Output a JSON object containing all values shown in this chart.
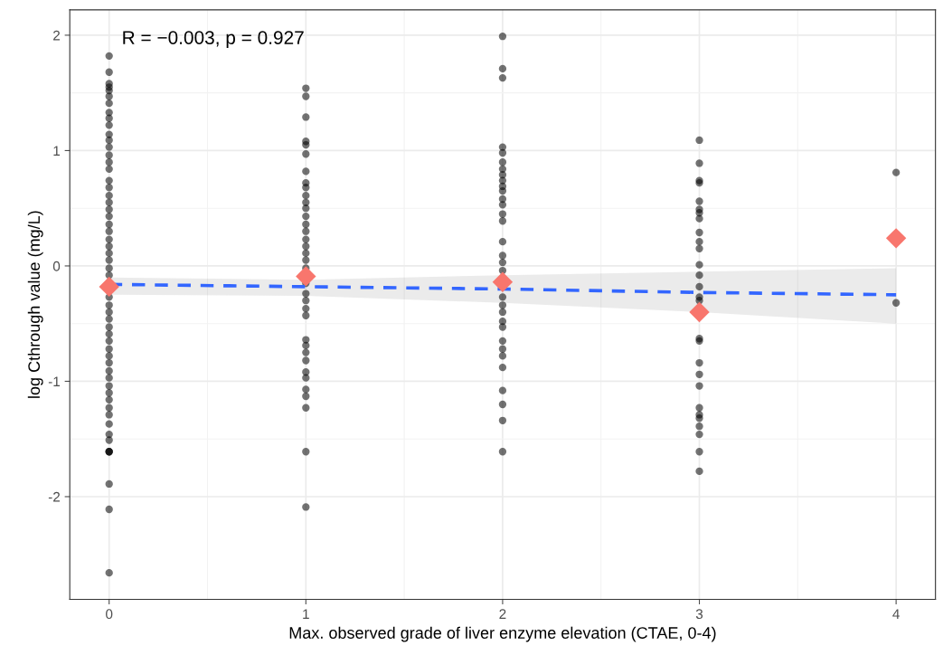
{
  "chart_data": {
    "type": "scatter",
    "xlabel": "Max. observed grade of liver enzyme elevation (CTAE, 0-4)",
    "ylabel": "log Cthrough value (mg/L)",
    "annotations": [
      "R = −0.003, p = 0.927"
    ],
    "xlim": [
      -0.2,
      4.2
    ],
    "xticks": [
      0,
      1,
      2,
      3,
      4
    ],
    "ylim": [
      -2.89,
      2.22
    ],
    "yticks": [
      -2,
      -1,
      0,
      1,
      2
    ],
    "grid": true,
    "series": [
      {
        "marker": "circle",
        "color": "#000000",
        "x": [
          0,
          0,
          0,
          0,
          0,
          0,
          0,
          0,
          0,
          0,
          0,
          0,
          0,
          0,
          0,
          0,
          0,
          0,
          0,
          0,
          0,
          0,
          0,
          0,
          0,
          0,
          0,
          0,
          0,
          0,
          0,
          0,
          0,
          0,
          0,
          0,
          0,
          0,
          0,
          0,
          0,
          0,
          0,
          0,
          0,
          0,
          0,
          0,
          0,
          0,
          0,
          0,
          0,
          0,
          0,
          0,
          1,
          1,
          1,
          1,
          1,
          1,
          1,
          1,
          1,
          1,
          1,
          1,
          1,
          1,
          1,
          1,
          1,
          1,
          1,
          1,
          1,
          1,
          1,
          1,
          1,
          1,
          1,
          1,
          1,
          1,
          1,
          1,
          1,
          1,
          1,
          1,
          2,
          2,
          2,
          2,
          2,
          2,
          2,
          2,
          2,
          2,
          2,
          2,
          2,
          2,
          2,
          2,
          2,
          2,
          2,
          2,
          2,
          2,
          2,
          2,
          2,
          2,
          2,
          2,
          2,
          2,
          2,
          2,
          3,
          3,
          3,
          3,
          3,
          3,
          3,
          3,
          3,
          3,
          3,
          3,
          3,
          3,
          3,
          3,
          3,
          3,
          3,
          3,
          3,
          3,
          3,
          3,
          3,
          3,
          3,
          3,
          4,
          4
        ],
        "values": [
          1.82,
          1.68,
          1.58,
          1.55,
          1.52,
          1.47,
          1.41,
          1.33,
          1.28,
          1.22,
          1.14,
          1.09,
          1.03,
          0.96,
          0.9,
          0.84,
          0.74,
          0.68,
          0.61,
          0.55,
          0.49,
          0.43,
          0.36,
          0.3,
          0.23,
          0.17,
          0.11,
          0.05,
          -0.02,
          -0.08,
          -0.27,
          -0.34,
          -0.4,
          -0.46,
          -0.53,
          -0.59,
          -0.65,
          -0.72,
          -0.78,
          -0.84,
          -0.91,
          -0.97,
          -1.04,
          -1.1,
          -1.16,
          -1.23,
          -1.29,
          -1.37,
          -1.46,
          -1.51,
          -1.61,
          -1.61,
          -1.61,
          -1.89,
          -2.11,
          -2.66,
          1.54,
          1.47,
          1.29,
          1.08,
          1.05,
          0.97,
          0.82,
          0.72,
          0.68,
          0.61,
          0.55,
          0.5,
          0.43,
          0.36,
          0.3,
          0.23,
          0.17,
          0.11,
          0.05,
          -0.02,
          -0.15,
          -0.24,
          -0.3,
          -0.37,
          -0.43,
          -0.64,
          -0.69,
          -0.75,
          -0.82,
          -0.92,
          -0.97,
          -1.07,
          -1.13,
          -1.23,
          -1.61,
          -2.09,
          1.99,
          1.71,
          1.63,
          1.03,
          0.98,
          0.9,
          0.84,
          0.79,
          0.74,
          0.69,
          0.65,
          0.58,
          0.53,
          0.45,
          0.39,
          0.21,
          0.09,
          0.03,
          -0.04,
          -0.27,
          -0.34,
          -0.4,
          -0.48,
          -0.53,
          -0.65,
          -0.72,
          -0.78,
          -0.88,
          -1.08,
          -1.2,
          -1.34,
          -1.61,
          1.09,
          0.89,
          0.74,
          0.72,
          0.56,
          0.49,
          0.46,
          0.41,
          0.29,
          0.21,
          0.15,
          0.01,
          -0.08,
          -0.18,
          -0.27,
          -0.3,
          -0.63,
          -0.65,
          -0.84,
          -0.94,
          -1.04,
          -1.23,
          -1.29,
          -1.32,
          -1.39,
          -1.46,
          -1.61,
          -1.78,
          0.81,
          -0.32
        ]
      },
      {
        "type": "line",
        "line_style": "dashed",
        "marker": "none",
        "color": "#3366ff",
        "x": [
          0,
          1,
          2,
          3,
          4
        ],
        "values": [
          -0.16,
          -0.18,
          -0.2,
          -0.23,
          -0.25
        ],
        "lower": [
          -0.25,
          -0.26,
          -0.32,
          -0.4,
          -0.5
        ],
        "upper": [
          -0.1,
          -0.12,
          -0.08,
          -0.05,
          -0.02
        ]
      },
      {
        "marker": "diamond",
        "color": "#f8766d",
        "x": [
          0,
          1,
          2,
          3,
          4
        ],
        "values": [
          -0.18,
          -0.09,
          -0.14,
          -0.4,
          0.24
        ]
      }
    ]
  }
}
